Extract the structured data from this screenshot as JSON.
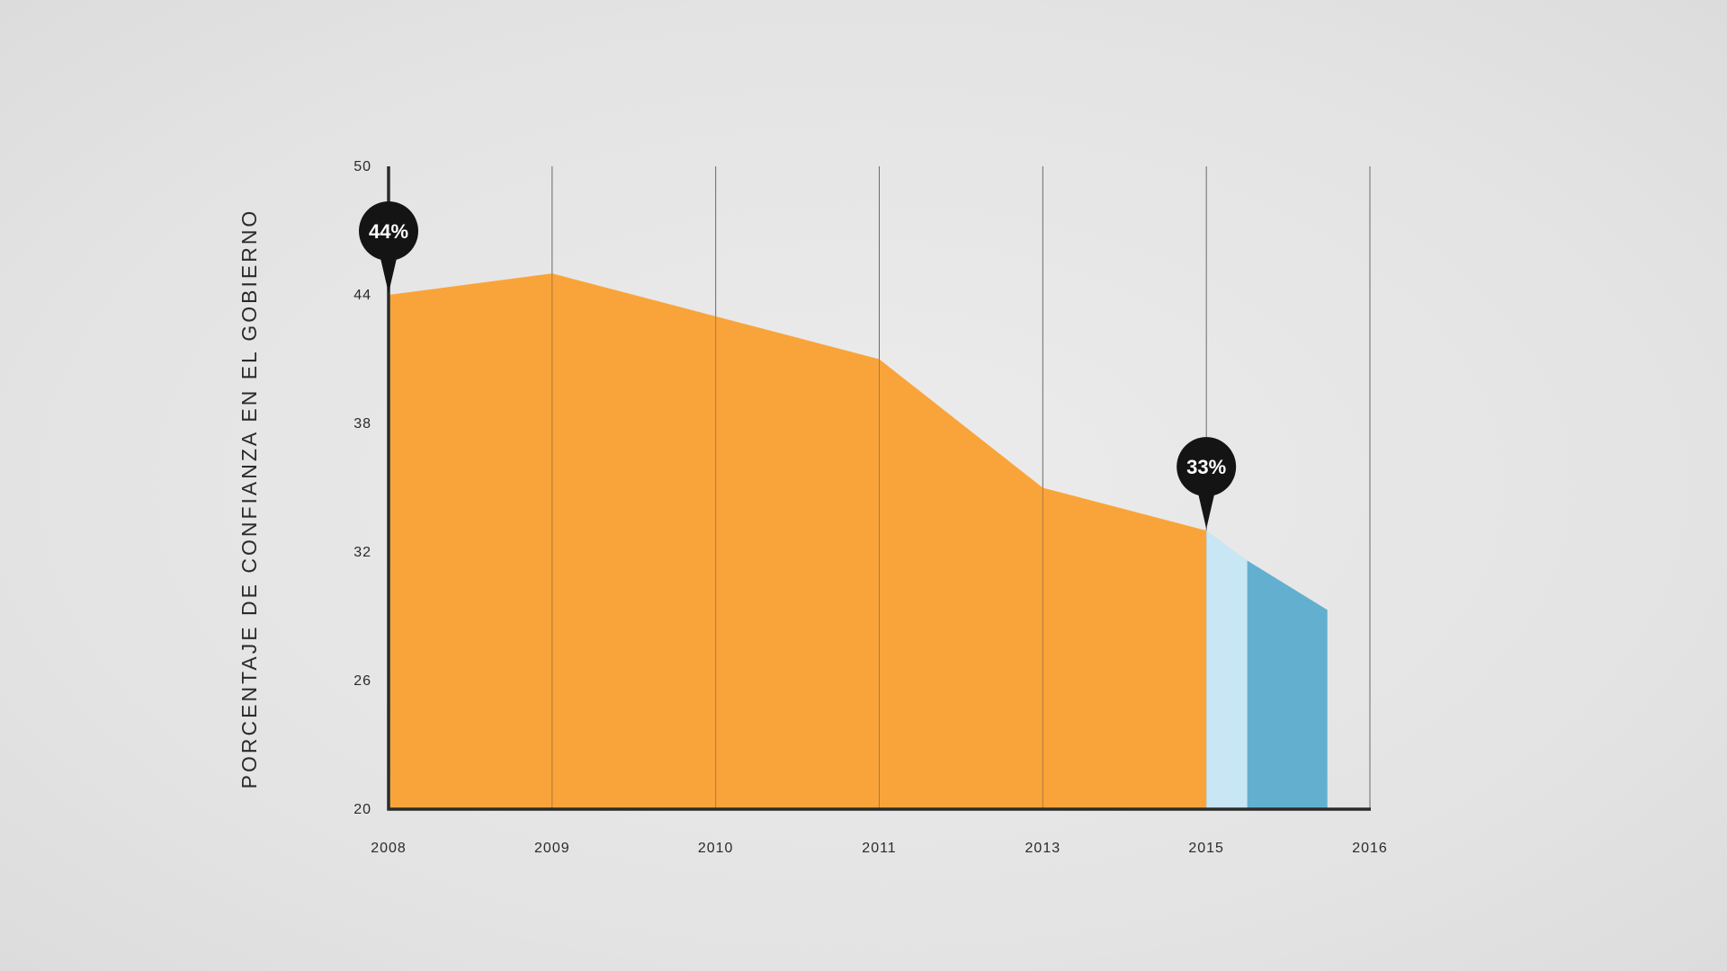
{
  "chart_data": {
    "type": "area",
    "title": "",
    "ylabel": "PORCENTAJE DE CONFIANZA EN EL GOBIERNO",
    "xlabel": "",
    "ylim": [
      20,
      50
    ],
    "yticks": [
      20,
      26,
      32,
      38,
      44,
      50
    ],
    "x_categories": [
      "2008",
      "2009",
      "2010",
      "2011",
      "2013",
      "2015",
      "2016"
    ],
    "grid": "vertical",
    "series": [
      {
        "color": "#f9a43a",
        "points": [
          {
            "x": 0,
            "y": 44
          },
          {
            "x": 1,
            "y": 45
          },
          {
            "x": 2,
            "y": 43
          },
          {
            "x": 3,
            "y": 41
          },
          {
            "x": 4,
            "y": 35
          },
          {
            "x": 5,
            "y": 33
          }
        ]
      },
      {
        "color": "#c8e6f3",
        "points": [
          {
            "x": 5,
            "y": 33
          },
          {
            "x": 5.25,
            "y": 31.6
          }
        ]
      },
      {
        "color": "#63afd0",
        "points": [
          {
            "x": 5.25,
            "y": 31.6
          },
          {
            "x": 5.74,
            "y": 29.3
          }
        ]
      }
    ],
    "annotations": [
      {
        "label": "44%",
        "x": 0,
        "y": 44
      },
      {
        "label": "33%",
        "x": 5,
        "y": 33
      }
    ]
  }
}
